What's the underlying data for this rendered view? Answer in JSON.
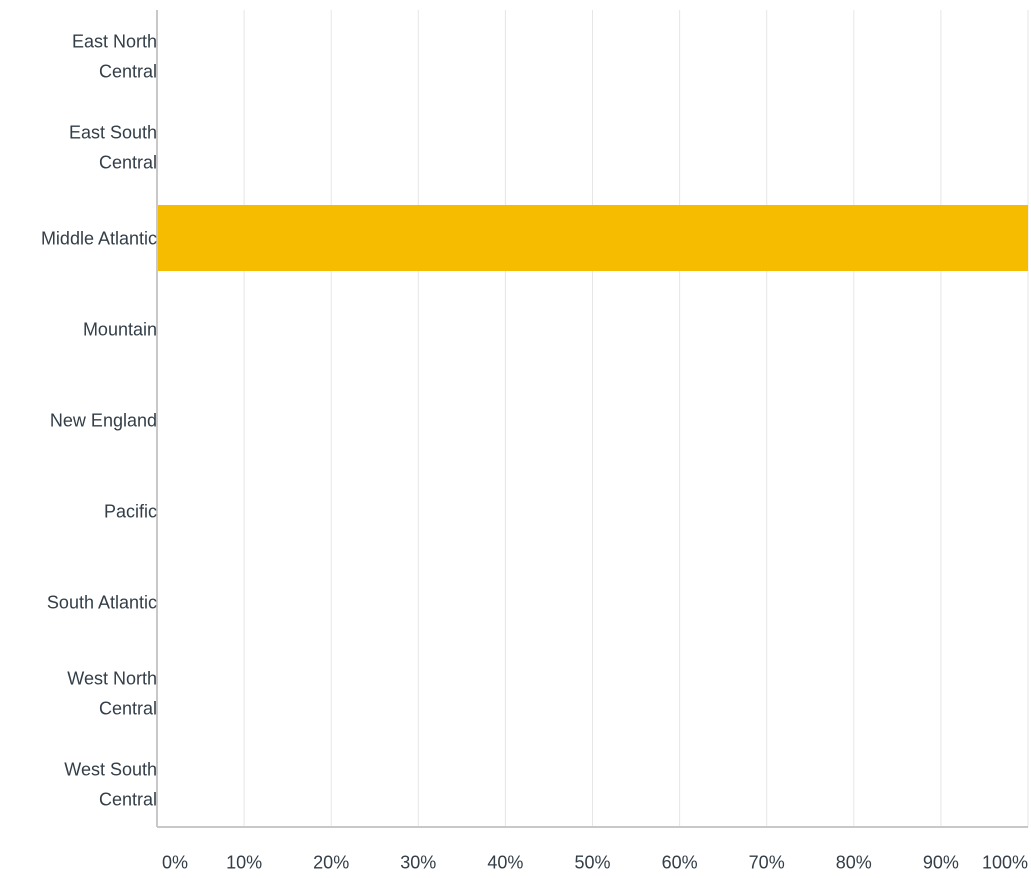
{
  "chart_data": {
    "type": "bar",
    "orientation": "horizontal",
    "categories": [
      [
        "East North",
        "Central"
      ],
      [
        "East South",
        "Central"
      ],
      [
        "Middle Atlantic"
      ],
      [
        "Mountain"
      ],
      [
        "New England"
      ],
      [
        "Pacific"
      ],
      [
        "South Atlantic"
      ],
      [
        "West North",
        "Central"
      ],
      [
        "West South",
        "Central"
      ]
    ],
    "values": [
      0,
      0,
      100,
      0,
      0,
      0,
      0,
      0,
      0
    ],
    "x_ticks": [
      "0%",
      "10%",
      "20%",
      "30%",
      "40%",
      "50%",
      "60%",
      "70%",
      "80%",
      "90%",
      "100%"
    ],
    "xlim": [
      0,
      100
    ],
    "grid": true,
    "title": "",
    "xlabel": "",
    "ylabel": "",
    "colors": {
      "bar": "#f6bd00",
      "grid": "#e6e6e6",
      "axis": "#c8c8c8",
      "text": "#333e48"
    }
  }
}
